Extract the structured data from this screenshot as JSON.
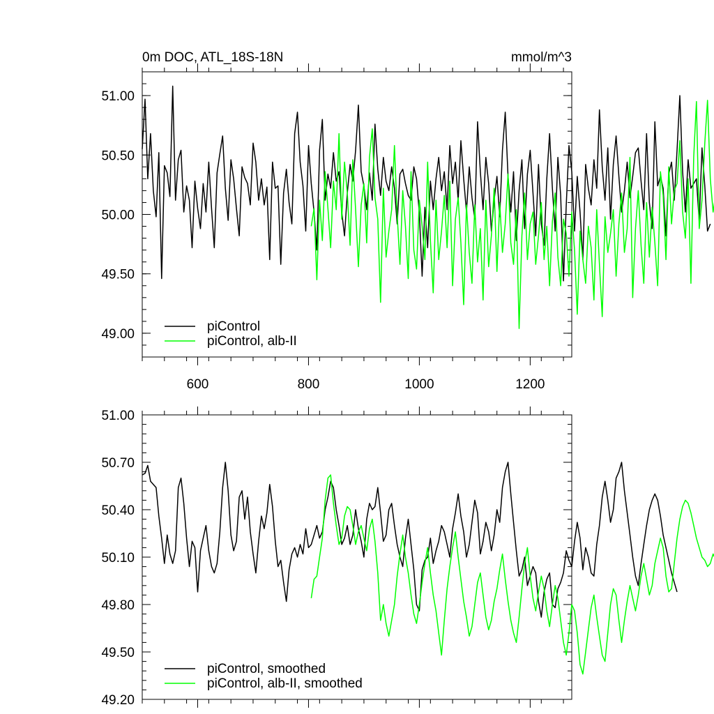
{
  "chart_data": [
    {
      "type": "line",
      "title": "0m DOC, ATL_18S-18N",
      "units": "mmol/m^3",
      "xlabel": "",
      "ylabel": "",
      "xlim": [
        500,
        1275
      ],
      "ylim": [
        48.8,
        51.2
      ],
      "xticks": [
        600,
        800,
        1000,
        1200
      ],
      "xtick_labels": [
        "600",
        "800",
        "1000",
        "1200"
      ],
      "yticks": [
        49.0,
        49.5,
        50.0,
        50.5,
        51.0
      ],
      "ytick_labels": [
        "49.00",
        "49.50",
        "50.00",
        "50.50",
        "51.00"
      ],
      "grid": false,
      "legend_position": "bottom-left",
      "series": [
        {
          "name": "piControl",
          "color": "#000000",
          "x_start": 500,
          "x_step": 5,
          "values": [
            50.55,
            50.97,
            50.3,
            50.68,
            50.2,
            49.98,
            50.52,
            49.46,
            50.41,
            50.35,
            50.15,
            51.08,
            50.12,
            50.46,
            50.54,
            50.02,
            50.24,
            50.12,
            49.72,
            50.28,
            50.05,
            49.88,
            50.26,
            50.02,
            50.44,
            50.05,
            49.72,
            50.35,
            50.51,
            50.66,
            50.22,
            49.95,
            50.46,
            50.3,
            50.05,
            49.82,
            50.4,
            50.31,
            50.26,
            50.08,
            50.6,
            50.44,
            50.12,
            50.3,
            50.08,
            50.23,
            49.62,
            50.44,
            50.22,
            50.24,
            49.58,
            50.18,
            50.38,
            50.1,
            49.92,
            50.68,
            50.86,
            50.44,
            50.24,
            49.86,
            50.58,
            50.26,
            50.02,
            49.7,
            50.54,
            50.8,
            50.12,
            50.34,
            50.22,
            50.52,
            50.28,
            50.36,
            50.02,
            49.82,
            50.18,
            50.42,
            50.28,
            50.54,
            50.92,
            50.36,
            50.24,
            50.04,
            50.35,
            50.12,
            50.76,
            50.38,
            50.16,
            50.48,
            50.28,
            50.2,
            50.4,
            50.22,
            49.92,
            50.34,
            50.38,
            50.26,
            50.16,
            50.12,
            50.4,
            50.3,
            50.01,
            49.48,
            50.06,
            49.72,
            50.28,
            50.04,
            50.3,
            50.48,
            50.2,
            50.36,
            50.04,
            50.58,
            50.26,
            50.44,
            50.12,
            50.62,
            50.3,
            50.02,
            50.4,
            50.14,
            49.96,
            50.78,
            50.36,
            50.04,
            50.48,
            50.26,
            49.86,
            50.12,
            50.32,
            49.98,
            50.54,
            50.86,
            50.32,
            50.02,
            50.36,
            49.78,
            50.2,
            50.46,
            49.88,
            50.34,
            50.54,
            50.18,
            49.82,
            50.42,
            49.92,
            49.74,
            50.3,
            50.68,
            50.22,
            49.86,
            50.48,
            50.16,
            49.44,
            50.08,
            50.58,
            50.36,
            49.86,
            50.32,
            50.02,
            49.62,
            50.42,
            50.22,
            50.08,
            50.46,
            50.22,
            50.88,
            50.4,
            50.12,
            50.56,
            49.96,
            50.42,
            50.66,
            50.32,
            50.02,
            50.2,
            50.44,
            50.14,
            50.32,
            50.52,
            50.56,
            50.28,
            50.04,
            50.68,
            50.1,
            49.88,
            50.78,
            50.24,
            50.32,
            50.22,
            49.82,
            50.34,
            50.44,
            50.12,
            50.54,
            51.0,
            50.36,
            50.02,
            50.46,
            50.22,
            50.26,
            50.3,
            49.94,
            50.56,
            50.24,
            49.86,
            49.92
          ]
        },
        {
          "name": "piControl, alb-II",
          "color": "#00ff00",
          "x_start": 805,
          "x_step": 5,
          "values": [
            49.9,
            50.05,
            49.45,
            50.12,
            49.78,
            50.36,
            50.05,
            49.72,
            50.28,
            50.04,
            50.68,
            49.96,
            50.44,
            50.18,
            49.74,
            50.46,
            50.04,
            49.56,
            50.08,
            50.26,
            49.76,
            50.48,
            50.72,
            50.14,
            49.96,
            49.26,
            50.22,
            49.64,
            49.86,
            50.04,
            50.58,
            50.0,
            49.58,
            50.2,
            49.9,
            49.46,
            50.36,
            49.7,
            49.54,
            50.12,
            49.9,
            49.62,
            50.44,
            49.78,
            49.34,
            50.12,
            49.62,
            49.86,
            50.16,
            49.72,
            50.28,
            49.4,
            49.96,
            50.14,
            49.76,
            49.24,
            50.08,
            49.68,
            49.42,
            50.08,
            49.6,
            49.88,
            49.28,
            50.12,
            49.56,
            49.82,
            50.22,
            49.52,
            50.1,
            49.68,
            49.92,
            50.34,
            49.76,
            49.58,
            50.04,
            49.04,
            49.82,
            50.18,
            49.62,
            49.92,
            50.02,
            49.58,
            49.82,
            50.1,
            49.62,
            49.9,
            49.4,
            49.94,
            50.18,
            49.64,
            49.4,
            49.96,
            49.84,
            49.48,
            50.02,
            49.7,
            49.16,
            49.86,
            49.62,
            49.42,
            49.9,
            49.72,
            49.28,
            50.04,
            49.58,
            49.14,
            49.98,
            49.68,
            49.84,
            50.04,
            49.48,
            49.92,
            50.18,
            49.68,
            49.88,
            50.48,
            49.3,
            49.88,
            50.2,
            49.74,
            49.42,
            50.1,
            49.64,
            50.06,
            49.76,
            49.4,
            50.36,
            50.16,
            49.62,
            50.4,
            49.92,
            50.2,
            50.26,
            50.62,
            50.02,
            49.8,
            50.3,
            49.42,
            50.48,
            50.95,
            49.88,
            50.12,
            50.6,
            50.96,
            50.3,
            50.02,
            50.18,
            49.94,
            50.18
          ]
        }
      ]
    },
    {
      "type": "line",
      "title": "",
      "xlabel": "",
      "ylabel": "",
      "xlim": [
        500,
        1275
      ],
      "ylim": [
        49.2,
        51.0
      ],
      "xticks": [
        600,
        800,
        1000,
        1200
      ],
      "xtick_labels": [
        "",
        "",
        "",
        ""
      ],
      "yticks": [
        49.2,
        49.5,
        49.8,
        50.1,
        50.4,
        50.7,
        51.0
      ],
      "ytick_labels": [
        "49.20",
        "49.50",
        "49.80",
        "50.10",
        "50.40",
        "50.70",
        "51.00"
      ],
      "grid": false,
      "legend_position": "bottom-left",
      "series": [
        {
          "name": "piControl, smoothed",
          "color": "#000000",
          "x_start": 500,
          "x_step": 5,
          "values": [
            50.62,
            50.63,
            50.68,
            50.58,
            50.56,
            50.54,
            50.36,
            50.22,
            50.06,
            50.24,
            50.12,
            50.06,
            50.14,
            50.54,
            50.6,
            50.44,
            50.22,
            50.04,
            50.2,
            50.16,
            49.88,
            50.14,
            50.22,
            50.3,
            50.14,
            50.04,
            50.0,
            50.06,
            50.26,
            50.54,
            50.7,
            50.52,
            50.24,
            50.14,
            50.2,
            50.48,
            50.52,
            50.34,
            50.48,
            50.26,
            50.12,
            50.0,
            50.2,
            50.36,
            50.28,
            50.38,
            50.56,
            50.42,
            50.2,
            50.04,
            50.08,
            49.94,
            49.82,
            50.02,
            50.12,
            50.16,
            50.1,
            50.18,
            50.12,
            50.28,
            50.16,
            50.18,
            50.24,
            50.3,
            50.22,
            50.26,
            50.4,
            50.48,
            50.58,
            50.54,
            50.4,
            50.3,
            50.18,
            50.22,
            50.3,
            50.18,
            50.24,
            50.4,
            50.28,
            50.2,
            50.1,
            50.34,
            50.44,
            50.4,
            50.42,
            50.54,
            50.38,
            50.2,
            50.24,
            50.4,
            50.44,
            50.3,
            50.18,
            50.1,
            50.04,
            50.22,
            50.34,
            50.18,
            50.02,
            49.8,
            49.76,
            50.02,
            50.08,
            50.1,
            50.22,
            50.06,
            50.14,
            50.2,
            50.3,
            50.26,
            50.18,
            50.1,
            50.28,
            50.38,
            50.5,
            50.36,
            50.26,
            50.1,
            50.18,
            50.32,
            50.46,
            50.38,
            50.12,
            50.2,
            50.32,
            50.26,
            50.14,
            50.24,
            50.4,
            50.32,
            50.54,
            50.64,
            50.7,
            50.5,
            50.32,
            50.14,
            49.98,
            50.02,
            50.1,
            49.92,
            49.98,
            50.04,
            50.0,
            49.82,
            49.72,
            49.88,
            49.96,
            50.0,
            49.8,
            49.78,
            49.9,
            49.94,
            50.0,
            50.14,
            50.08,
            50.04,
            50.2,
            50.32,
            50.22,
            50.02,
            50.16,
            50.1,
            50.0,
            49.98,
            50.18,
            50.3,
            50.48,
            50.58,
            50.46,
            50.32,
            50.4,
            50.6,
            50.64,
            50.7,
            50.52,
            50.38,
            50.24,
            50.1,
            49.98,
            49.92,
            50.06,
            50.18,
            50.3,
            50.4,
            50.46,
            50.5,
            50.46,
            50.36,
            50.24,
            50.16,
            50.08,
            50.0,
            49.94,
            49.88
          ]
        },
        {
          "name": "piControl, alb-II, smoothed",
          "color": "#00ff00",
          "x_start": 805,
          "x_step": 5,
          "values": [
            49.84,
            49.96,
            49.98,
            50.1,
            50.22,
            50.46,
            50.6,
            50.62,
            50.44,
            50.3,
            50.18,
            50.22,
            50.36,
            50.42,
            50.4,
            50.3,
            50.18,
            50.26,
            50.3,
            50.22,
            50.14,
            50.28,
            50.34,
            50.2,
            50.0,
            49.7,
            49.8,
            49.68,
            49.6,
            49.7,
            49.8,
            49.98,
            50.12,
            50.24,
            50.1,
            50.0,
            49.86,
            49.74,
            49.68,
            49.8,
            49.94,
            50.06,
            50.16,
            50.0,
            49.86,
            49.76,
            49.62,
            49.48,
            49.7,
            49.9,
            50.04,
            50.16,
            50.26,
            50.1,
            49.96,
            49.82,
            49.72,
            49.6,
            49.66,
            49.8,
            49.94,
            50.0,
            49.86,
            49.72,
            49.64,
            49.7,
            49.82,
            49.9,
            50.02,
            50.12,
            49.96,
            49.82,
            49.7,
            49.62,
            49.56,
            49.72,
            49.9,
            50.06,
            50.16,
            49.98,
            49.84,
            49.76,
            49.88,
            49.98,
            49.9,
            49.76,
            49.66,
            49.8,
            49.92,
            49.84,
            49.7,
            49.56,
            49.48,
            49.62,
            49.8,
            49.76,
            49.62,
            49.42,
            49.36,
            49.5,
            49.64,
            49.78,
            49.86,
            49.72,
            49.6,
            49.48,
            49.44,
            49.62,
            49.8,
            49.9,
            49.86,
            49.7,
            49.56,
            49.7,
            49.82,
            49.92,
            49.84,
            49.76,
            49.86,
            49.98,
            50.06,
            49.96,
            49.86,
            49.92,
            50.06,
            50.14,
            50.22,
            50.16,
            49.98,
            49.88,
            49.9,
            50.06,
            50.22,
            50.34,
            50.42,
            50.46,
            50.44,
            50.38,
            50.3,
            50.22,
            50.16,
            50.1,
            50.08,
            50.04,
            50.06,
            50.12,
            50.08
          ]
        }
      ]
    }
  ]
}
